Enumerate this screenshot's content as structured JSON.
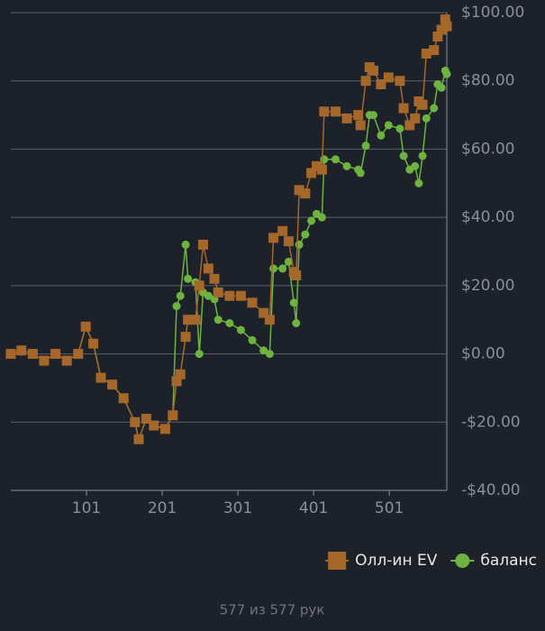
{
  "chart_data": {
    "type": "line",
    "x": [
      1,
      15,
      30,
      45,
      60,
      75,
      90,
      100,
      110,
      120,
      135,
      150,
      165,
      170,
      180,
      190,
      205,
      215,
      220,
      225,
      232,
      235,
      245,
      250,
      255,
      262,
      270,
      275,
      290,
      305,
      320,
      335,
      343,
      348,
      360,
      368,
      375,
      378,
      382,
      390,
      398,
      405,
      412,
      415,
      430,
      445,
      460,
      463,
      470,
      475,
      480,
      490,
      500,
      515,
      520,
      528,
      535,
      540,
      545,
      550,
      560,
      565,
      570,
      575,
      577
    ],
    "series": [
      {
        "name": "Олл-ин EV",
        "color": "#a5682a",
        "marker": "square",
        "values": [
          0,
          1,
          0,
          -2,
          0,
          -2,
          0,
          8,
          3,
          -7,
          -9,
          -13,
          -20,
          -25,
          -19,
          -21,
          -22,
          -18,
          -8,
          -6,
          5,
          10,
          10,
          20,
          32,
          25,
          22,
          18,
          17,
          17,
          15,
          12,
          10,
          34,
          36,
          33,
          24,
          23,
          48,
          47,
          53,
          55,
          54,
          71,
          71,
          69,
          70,
          67,
          80,
          84,
          83,
          79,
          81,
          80,
          72,
          67,
          69,
          74,
          73,
          88,
          89,
          93,
          95,
          98,
          96
        ]
      },
      {
        "name": "баланс",
        "color": "#6db33f",
        "marker": "circle",
        "values": [
          0,
          1,
          0,
          -2,
          0,
          -2,
          0,
          8,
          3,
          -7,
          -9,
          -13,
          -20,
          -25,
          -19,
          -21,
          -22,
          -18,
          14,
          17,
          32,
          22,
          21,
          0,
          18,
          17,
          16,
          10,
          9,
          7,
          4,
          1,
          0,
          25,
          25,
          27,
          15,
          9,
          32,
          35,
          39,
          41,
          40,
          57,
          57,
          55,
          54,
          53,
          61,
          70,
          70,
          64,
          67,
          66,
          58,
          54,
          55,
          50,
          58,
          69,
          72,
          79,
          78,
          83,
          82
        ]
      }
    ],
    "xlim": [
      1,
      577
    ],
    "xticks": [
      101,
      201,
      301,
      401,
      501
    ],
    "ylim": [
      -40,
      100
    ],
    "yticks": [
      {
        "value": -40,
        "label": "-$40.00"
      },
      {
        "value": -20,
        "label": "-$20.00"
      },
      {
        "value": 0,
        "label": "$0.00"
      },
      {
        "value": 20,
        "label": "$20.00"
      },
      {
        "value": 40,
        "label": "$40.00"
      },
      {
        "value": 60,
        "label": "$60.00"
      },
      {
        "value": 80,
        "label": "$80.00"
      },
      {
        "value": 100,
        "label": "$100.00"
      }
    ],
    "grid": true,
    "legend": "bottom-right"
  },
  "footer": "577 из 577 рук"
}
